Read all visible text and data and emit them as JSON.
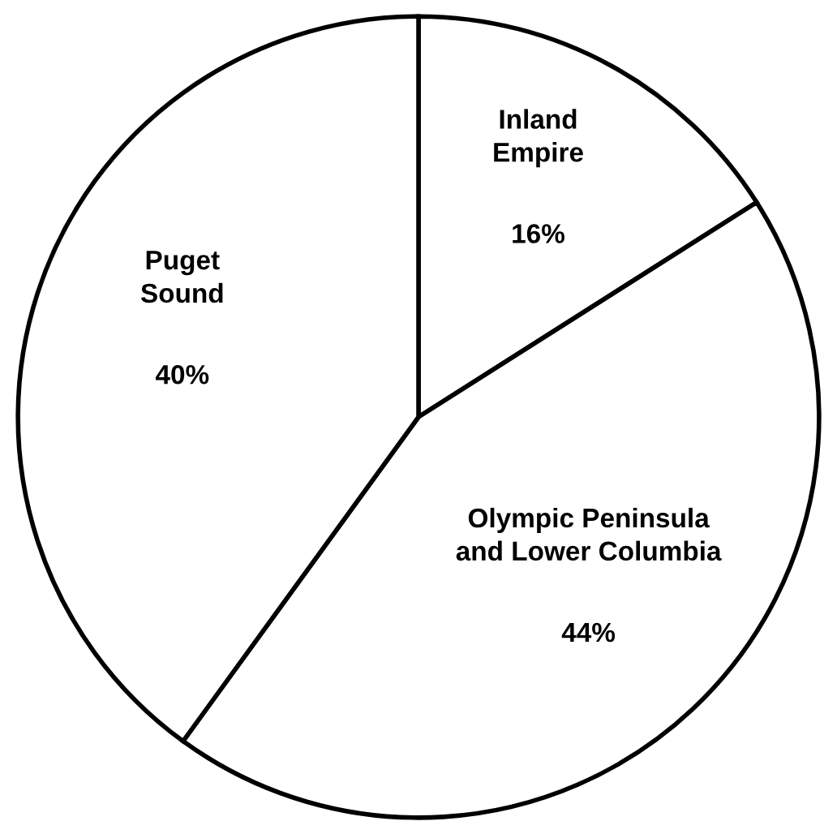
{
  "chart_data": {
    "type": "pie",
    "categories": [
      "Inland\nEmpire",
      "Olympic Peninsula\nand Lower Columbia",
      "Puget\nSound"
    ],
    "values": [
      16,
      44,
      40
    ],
    "colors": [
      "#ffffff",
      "#ffffff",
      "#ffffff"
    ],
    "value_labels": [
      "16%",
      "44%",
      "40%"
    ]
  }
}
